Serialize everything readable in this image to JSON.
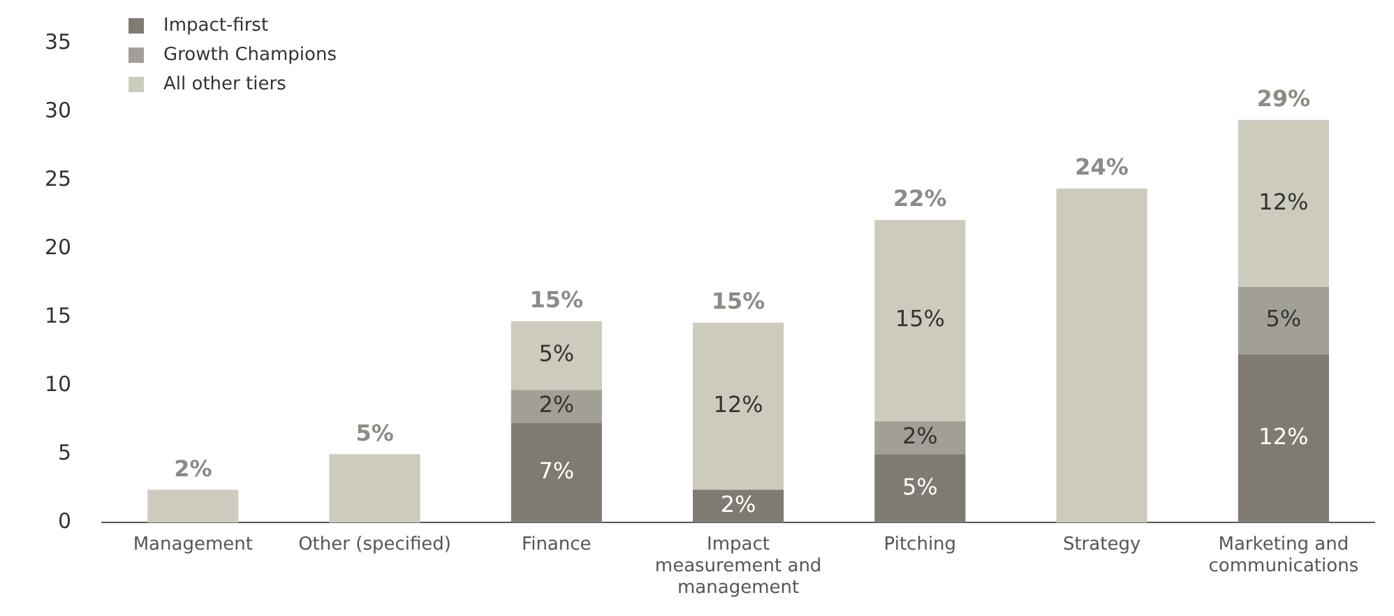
{
  "chart_data": {
    "type": "bar",
    "stacked": true,
    "categories": [
      "Management",
      "Other (specified)",
      "Finance",
      "Impact measurement and management",
      "Pitching",
      "Strategy",
      "Marketing and communications"
    ],
    "series": [
      {
        "name": "Impact-first",
        "color": "#7f7b72",
        "values": [
          null,
          null,
          7.3,
          2.4,
          5.0,
          null,
          12.3
        ],
        "value_labels": [
          null,
          null,
          "7%",
          "2%",
          "5%",
          null,
          "12%"
        ]
      },
      {
        "name": "Growth Champions",
        "color": "#a19f96",
        "values": [
          null,
          null,
          2.4,
          null,
          2.4,
          null,
          4.9
        ],
        "value_labels": [
          null,
          null,
          "2%",
          null,
          "2%",
          null,
          "5%"
        ]
      },
      {
        "name": "All other tiers",
        "color": "#cdcbbd",
        "values": [
          2.4,
          5.0,
          5.0,
          12.2,
          14.7,
          24.4,
          12.2
        ],
        "value_labels": [
          null,
          null,
          "5%",
          "12%",
          "15%",
          null,
          "12%"
        ]
      }
    ],
    "totals": [
      "2%",
      "5%",
      "15%",
      "15%",
      "22%",
      "24%",
      "29%"
    ],
    "ylim": [
      0,
      35
    ],
    "yticks": [
      0,
      5,
      10,
      15,
      20,
      25,
      30,
      35
    ],
    "grid": false,
    "legend": "top left"
  }
}
